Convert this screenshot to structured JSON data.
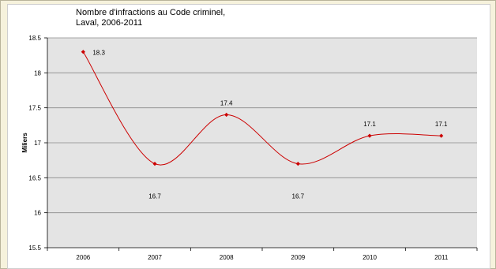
{
  "chart_data": {
    "type": "line",
    "title": "Nombre d'infractions au Code criminel,\nLaval, 2006-2011",
    "xlabel": "",
    "ylabel": "Miliers",
    "categories": [
      "2006",
      "2007",
      "2008",
      "2009",
      "2010",
      "2011"
    ],
    "values": [
      18.3,
      16.7,
      17.4,
      16.7,
      17.1,
      17.1
    ],
    "data_labels": [
      "18.3",
      "16.7",
      "17.4",
      "16.7",
      "17.1",
      "17.1"
    ],
    "ylim": [
      15.5,
      18.5
    ],
    "yticks": [
      "15.5",
      "16",
      "16.5",
      "17",
      "17.5",
      "18",
      "18.5"
    ],
    "grid": true,
    "legend": "none",
    "colors": {
      "line": "#cc0000",
      "plot_background": "#e4e4e4",
      "gridline": "#8a8a8a",
      "chart_background": "#ffffff",
      "outer_background": "#f6f2dc"
    }
  }
}
